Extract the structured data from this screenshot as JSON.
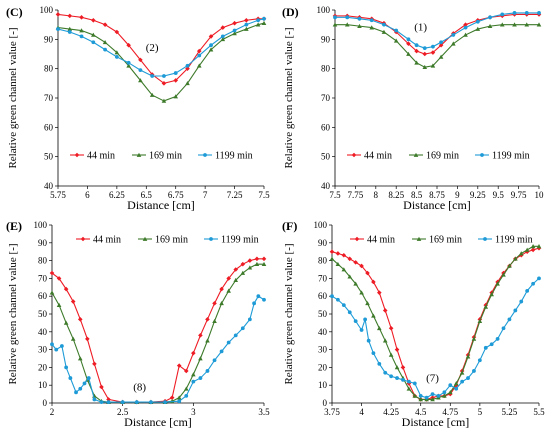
{
  "colors": {
    "s44": "#ee1c25",
    "s169": "#3d7a2a",
    "s1199": "#1e9bd7"
  },
  "chart_data": [
    {
      "type": "line",
      "panel_label": "(C)",
      "annotation": "(2)",
      "xlabel": "Distance [cm]",
      "ylabel": "Relative green channel value [-]",
      "xlim": [
        5.75,
        7.5
      ],
      "ylim": [
        40,
        100
      ],
      "xticks": [
        "5.75",
        "6",
        "6.25",
        "6.5",
        "6.75",
        "7",
        "7.25",
        "7.5"
      ],
      "yticks": [
        "40",
        "50",
        "60",
        "70",
        "80",
        "90",
        "100"
      ],
      "grid": false,
      "legend": {
        "position": "bottom-center",
        "labels": [
          "44 min",
          "169 min",
          "1199 min"
        ]
      },
      "series": [
        {
          "name": "44 min",
          "x": [
            5.75,
            5.85,
            5.95,
            6.05,
            6.15,
            6.25,
            6.35,
            6.45,
            6.55,
            6.65,
            6.75,
            6.85,
            6.95,
            7.05,
            7.15,
            7.25,
            7.35,
            7.45,
            7.5
          ],
          "y": [
            98.5,
            98,
            97.5,
            96.5,
            95,
            92.5,
            88,
            83,
            78,
            75,
            76,
            80,
            86,
            91,
            94,
            95.5,
            96.5,
            97,
            97
          ]
        },
        {
          "name": "169 min",
          "x": [
            5.75,
            5.85,
            5.95,
            6.05,
            6.15,
            6.25,
            6.35,
            6.45,
            6.55,
            6.65,
            6.75,
            6.85,
            6.95,
            7.05,
            7.15,
            7.25,
            7.35,
            7.45,
            7.5
          ],
          "y": [
            94,
            93.5,
            93,
            91.5,
            89,
            85.5,
            81,
            76,
            71,
            69,
            70.5,
            75,
            81,
            86.5,
            90,
            92,
            93.5,
            95,
            95.5
          ]
        },
        {
          "name": "1199 min",
          "x": [
            5.75,
            5.85,
            5.95,
            6.05,
            6.15,
            6.25,
            6.35,
            6.45,
            6.55,
            6.65,
            6.75,
            6.85,
            6.95,
            7.05,
            7.15,
            7.25,
            7.35,
            7.45,
            7.5
          ],
          "y": [
            93.5,
            92.5,
            91,
            89,
            86.5,
            84,
            82,
            79.5,
            77.5,
            77.5,
            78.5,
            81,
            84.5,
            88,
            91,
            93,
            95,
            96.5,
            97
          ]
        }
      ]
    },
    {
      "type": "line",
      "panel_label": "(D)",
      "annotation": "(1)",
      "xlabel": "Distance [cm]",
      "ylabel": "Relative green channel  value [-]",
      "xlim": [
        7.5,
        10
      ],
      "ylim": [
        40,
        100
      ],
      "xticks": [
        "7.5",
        "7.75",
        "8",
        "8.25",
        "8.5",
        "8.75",
        "9",
        "9.25",
        "9.5",
        "9.75",
        "10"
      ],
      "yticks": [
        "40",
        "50",
        "60",
        "70",
        "80",
        "90",
        "100"
      ],
      "grid": false,
      "legend": {
        "position": "bottom-center",
        "labels": [
          "44 min",
          "169 min",
          "1199 min"
        ]
      },
      "series": [
        {
          "name": "44 min",
          "x": [
            7.5,
            7.65,
            7.8,
            7.95,
            8.1,
            8.25,
            8.4,
            8.5,
            8.6,
            8.7,
            8.8,
            8.95,
            9.1,
            9.25,
            9.4,
            9.55,
            9.7,
            9.85,
            10
          ],
          "y": [
            98,
            98,
            97.5,
            97,
            95.5,
            92.5,
            88.5,
            86,
            85,
            85.5,
            88,
            92,
            95,
            96.5,
            97.5,
            98,
            98.5,
            98.5,
            98.5
          ]
        },
        {
          "name": "169 min",
          "x": [
            7.5,
            7.65,
            7.8,
            7.95,
            8.1,
            8.25,
            8.4,
            8.5,
            8.6,
            8.7,
            8.8,
            8.95,
            9.1,
            9.25,
            9.4,
            9.55,
            9.7,
            9.85,
            10
          ],
          "y": [
            95,
            95,
            94.5,
            94,
            92.5,
            89.5,
            85,
            82,
            80.5,
            81,
            84,
            88.5,
            91.5,
            93.5,
            94.5,
            95,
            95,
            95,
            95
          ]
        },
        {
          "name": "1199 min",
          "x": [
            7.5,
            7.65,
            7.8,
            7.95,
            8.1,
            8.25,
            8.4,
            8.5,
            8.6,
            8.7,
            8.8,
            8.95,
            9.1,
            9.25,
            9.4,
            9.55,
            9.7,
            9.85,
            10
          ],
          "y": [
            97.5,
            97.5,
            97,
            96.5,
            95,
            93,
            90,
            88,
            87,
            87.5,
            89,
            91.5,
            94,
            96,
            97.5,
            98.5,
            99,
            99,
            99
          ]
        }
      ]
    },
    {
      "type": "line",
      "panel_label": "(E)",
      "annotation": "(8)",
      "xlabel": "Distance [cm]",
      "ylabel": "Relative green channel value [-]",
      "xlim": [
        2,
        3.5
      ],
      "ylim": [
        0,
        100
      ],
      "xticks": [
        "2",
        "2.5",
        "3",
        "3.5"
      ],
      "yticks": [
        "0",
        "10",
        "20",
        "30",
        "40",
        "50",
        "60",
        "70",
        "80",
        "90",
        "100"
      ],
      "grid": false,
      "legend": {
        "position": "top-center",
        "labels": [
          "44 min",
          "169 min",
          "1199 min"
        ]
      },
      "series": [
        {
          "name": "44 min",
          "x": [
            2,
            2.05,
            2.1,
            2.15,
            2.2,
            2.25,
            2.3,
            2.35,
            2.4,
            2.5,
            2.6,
            2.7,
            2.8,
            2.85,
            2.9,
            2.95,
            3,
            3.05,
            3.1,
            3.15,
            3.2,
            3.25,
            3.3,
            3.35,
            3.4,
            3.45,
            3.5
          ],
          "y": [
            73,
            70,
            64,
            57,
            47,
            36,
            22,
            9,
            2,
            0.5,
            0.5,
            0.5,
            1,
            3,
            21,
            18,
            28,
            38,
            47,
            56,
            64,
            70,
            75,
            78,
            80,
            81,
            81
          ]
        },
        {
          "name": "169 min",
          "x": [
            2,
            2.05,
            2.1,
            2.15,
            2.2,
            2.25,
            2.3,
            2.35,
            2.4,
            2.5,
            2.6,
            2.7,
            2.8,
            2.85,
            2.9,
            2.95,
            3,
            3.05,
            3.1,
            3.15,
            3.2,
            3.25,
            3.3,
            3.35,
            3.4,
            3.45,
            3.5
          ],
          "y": [
            62,
            55,
            45,
            36,
            25,
            13,
            4,
            1,
            0.5,
            0.5,
            0.5,
            0.5,
            0.5,
            1,
            3,
            8,
            16,
            25,
            35,
            46,
            56,
            63,
            69,
            73,
            76,
            78,
            78
          ]
        },
        {
          "name": "1199 min",
          "x": [
            2,
            2.03,
            2.07,
            2.1,
            2.13,
            2.17,
            2.2,
            2.23,
            2.26,
            2.3,
            2.35,
            2.4,
            2.5,
            2.6,
            2.7,
            2.8,
            2.9,
            2.95,
            3,
            3.05,
            3.1,
            3.15,
            3.2,
            3.25,
            3.3,
            3.35,
            3.4,
            3.43,
            3.46,
            3.5
          ],
          "y": [
            33,
            30,
            32,
            20,
            14,
            6,
            8,
            11,
            14,
            2,
            0.5,
            0.5,
            0.5,
            0.5,
            0.5,
            0.5,
            1,
            4,
            12,
            14,
            18,
            24,
            29,
            34,
            38,
            42,
            47,
            56,
            60,
            58
          ]
        }
      ]
    },
    {
      "type": "line",
      "panel_label": "(F)",
      "annotation": "(7)",
      "xlabel": "Distance [cm]",
      "ylabel": "Relative green channel value [-]",
      "xlim": [
        3.75,
        5.5
      ],
      "ylim": [
        0,
        100
      ],
      "xticks": [
        "3.75",
        "4",
        "4.25",
        "4.5",
        "4.75",
        "5",
        "5.25",
        "5.5"
      ],
      "yticks": [
        "0",
        "10",
        "20",
        "30",
        "40",
        "50",
        "60",
        "70",
        "80",
        "90",
        "100"
      ],
      "grid": false,
      "legend": {
        "position": "top-center",
        "labels": [
          "44 min",
          "169 min",
          "1199 min"
        ]
      },
      "series": [
        {
          "name": "44 min",
          "x": [
            3.75,
            3.8,
            3.85,
            3.9,
            3.95,
            4,
            4.05,
            4.1,
            4.15,
            4.2,
            4.25,
            4.3,
            4.35,
            4.4,
            4.45,
            4.5,
            4.55,
            4.6,
            4.65,
            4.7,
            4.75,
            4.8,
            4.85,
            4.9,
            4.95,
            5,
            5.05,
            5.1,
            5.15,
            5.2,
            5.25,
            5.3,
            5.35,
            5.4,
            5.45,
            5.5
          ],
          "y": [
            85,
            84,
            83,
            81,
            79,
            77,
            73,
            68,
            62,
            52,
            42,
            30,
            20,
            11,
            4,
            2,
            2,
            3,
            4,
            4,
            5,
            10,
            18,
            27,
            37,
            47,
            55,
            62,
            68,
            73,
            77,
            81,
            83,
            85,
            86,
            87
          ]
        },
        {
          "name": "169 min",
          "x": [
            3.75,
            3.8,
            3.85,
            3.9,
            3.95,
            4,
            4.05,
            4.1,
            4.15,
            4.2,
            4.25,
            4.3,
            4.35,
            4.4,
            4.45,
            4.5,
            4.55,
            4.6,
            4.65,
            4.7,
            4.75,
            4.8,
            4.85,
            4.9,
            4.95,
            5,
            5.05,
            5.1,
            5.15,
            5.2,
            5.25,
            5.3,
            5.35,
            5.4,
            5.45,
            5.5
          ],
          "y": [
            81,
            78,
            75,
            71,
            67,
            62,
            56,
            49,
            42,
            35,
            27,
            20,
            14,
            8,
            4,
            2,
            2,
            2,
            3,
            4,
            6,
            11,
            17,
            26,
            36,
            46,
            54,
            61,
            67,
            72,
            77,
            81,
            84,
            86,
            88,
            88
          ]
        },
        {
          "name": "1199 min",
          "x": [
            3.75,
            3.8,
            3.85,
            3.9,
            3.95,
            4,
            4.03,
            4.06,
            4.1,
            4.15,
            4.2,
            4.25,
            4.3,
            4.35,
            4.4,
            4.45,
            4.5,
            4.55,
            4.6,
            4.65,
            4.7,
            4.75,
            4.8,
            4.85,
            4.9,
            4.95,
            5,
            5.05,
            5.1,
            5.15,
            5.2,
            5.25,
            5.3,
            5.35,
            5.4,
            5.45,
            5.5
          ],
          "y": [
            60,
            58,
            55,
            51,
            46,
            41,
            47,
            35,
            28,
            22,
            17,
            15,
            14,
            13,
            12,
            11,
            4,
            3,
            5,
            4,
            6,
            10,
            8,
            12,
            14,
            18,
            24,
            31,
            33,
            36,
            42,
            47,
            52,
            57,
            63,
            67,
            70
          ]
        }
      ]
    }
  ]
}
